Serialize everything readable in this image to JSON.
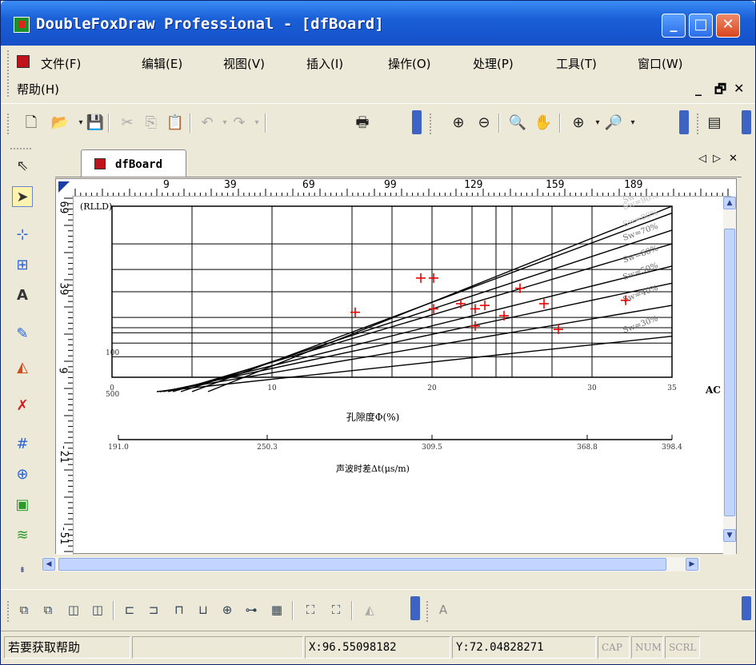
{
  "window": {
    "title": "DoubleFoxDraw Professional - [dfBoard]",
    "minimize": "_",
    "maximize": "□",
    "close": "✕"
  },
  "menu": {
    "items": [
      "文件(F)",
      "编辑(E)",
      "视图(V)",
      "插入(I)",
      "操作(O)",
      "处理(P)",
      "工具(T)",
      "窗口(W)",
      "帮助(H)"
    ],
    "mdi_min": "_",
    "mdi_restore": "🗗",
    "mdi_close": "✕"
  },
  "document": {
    "tab_label": "dfBoard",
    "tab_prev": "◁",
    "tab_next": "▷",
    "tab_close": "✕"
  },
  "ruler": {
    "h_labels": [
      "9",
      "39",
      "69",
      "99",
      "129",
      "159",
      "189"
    ],
    "v_labels": [
      "69",
      "39",
      "9",
      "-21",
      "-51"
    ]
  },
  "chart_data": {
    "type": "scatter",
    "y_axis_label": "(RLLD)",
    "y_tick_labels": [
      "100",
      "500"
    ],
    "x_ticks": [
      0,
      10,
      20,
      30,
      35
    ],
    "xlim": [
      0,
      35
    ],
    "xlabel": "孔隙度Φ(%)",
    "xlabel2": "声波时差Δt(μs/m)",
    "x2_ticks": [
      "191.0",
      "250.3",
      "309.5",
      "368.8",
      "398.4"
    ],
    "right_cut_label": "AC",
    "sw_lines": [
      {
        "name": "Sw=100%"
      },
      {
        "name": "Sw=90%"
      },
      {
        "name": "Sw=80%"
      },
      {
        "name": "Sw=70%"
      },
      {
        "name": "Sw=60%"
      },
      {
        "name": "Sw=50%"
      },
      {
        "name": "Sw=40%"
      },
      {
        "name": "Sw=30%"
      }
    ],
    "points": [
      {
        "x": 15.2,
        "y": 0.38
      },
      {
        "x": 19.3,
        "y": 0.58
      },
      {
        "x": 20.1,
        "y": 0.58
      },
      {
        "x": 20.1,
        "y": 0.4
      },
      {
        "x": 21.8,
        "y": 0.43
      },
      {
        "x": 22.7,
        "y": 0.3
      },
      {
        "x": 22.7,
        "y": 0.4
      },
      {
        "x": 23.3,
        "y": 0.42
      },
      {
        "x": 24.5,
        "y": 0.36
      },
      {
        "x": 25.5,
        "y": 0.52
      },
      {
        "x": 27.0,
        "y": 0.43
      },
      {
        "x": 27.9,
        "y": 0.28
      },
      {
        "x": 32.1,
        "y": 0.45
      }
    ],
    "grid": true
  },
  "statusbar": {
    "help": "若要获取帮助",
    "x": "X:96.55098182",
    "y": "Y:72.04828271",
    "cap": "CAP",
    "num": "NUM",
    "scrl": "SCRL"
  }
}
